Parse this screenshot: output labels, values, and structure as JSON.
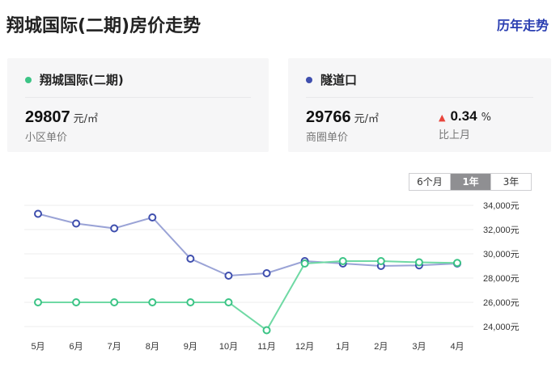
{
  "header": {
    "title": "翔城国际(二期)房价走势",
    "history_link": "历年走势"
  },
  "cards": {
    "left": {
      "name": "翔城国际(二期)",
      "price": "29807",
      "unit": "元/㎡",
      "sub": "小区单价",
      "dot_color": "#3cc486"
    },
    "right": {
      "name": "隧道口",
      "price": "29766",
      "unit": "元/㎡",
      "sub": "商圈单价",
      "change_value": "0.34",
      "change_unit": "%",
      "change_label": "比上月",
      "change_direction": "up",
      "dot_color": "#3f4fae"
    }
  },
  "range_selector": {
    "options": [
      "6个月",
      "1年",
      "3年"
    ],
    "selected": "1年"
  },
  "colors": {
    "community_line": "#6fd9a4",
    "community_marker": "#3cc486",
    "district_line": "#9aa3d6",
    "district_marker": "#3f4fae",
    "grid": "#ececec",
    "up_arrow": "#e8453c",
    "accent_link": "#2a3eb1"
  },
  "chart_data": {
    "type": "line",
    "categories": [
      "5月",
      "6月",
      "7月",
      "8月",
      "9月",
      "10月",
      "11月",
      "12月",
      "1月",
      "2月",
      "3月",
      "4月"
    ],
    "series": [
      {
        "name": "隧道口",
        "values": [
          33300,
          32500,
          32100,
          33000,
          29600,
          28200,
          28400,
          29400,
          29200,
          29000,
          29050,
          29200
        ]
      },
      {
        "name": "翔城国际(二期)",
        "values": [
          26000,
          26000,
          26000,
          26000,
          26000,
          26000,
          23700,
          29200,
          29400,
          29400,
          29300,
          29250
        ]
      }
    ],
    "yticks": [
      "34,000元",
      "32,000元",
      "30,000元",
      "28,000元",
      "26,000元",
      "24,000元"
    ],
    "ytick_values": [
      34000,
      32000,
      30000,
      28000,
      26000,
      24000
    ],
    "ylim": [
      23000,
      35000
    ],
    "grid": true
  }
}
